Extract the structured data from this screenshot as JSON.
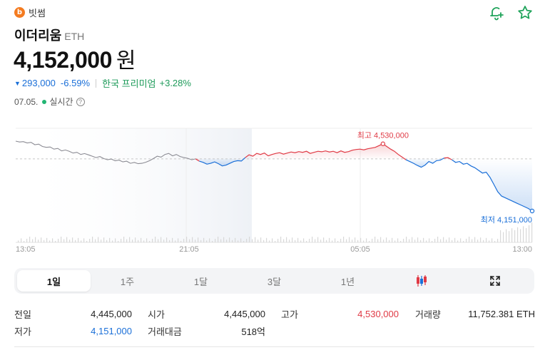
{
  "exchange": {
    "logo_letter": "b",
    "name": "빗썸"
  },
  "coin": {
    "name": "이더리움",
    "symbol": "ETH"
  },
  "price": {
    "value": "4,152,000",
    "unit": "원"
  },
  "change": {
    "amount": "293,000",
    "percent": "-6.59%",
    "direction": "down"
  },
  "premium": {
    "label": "한국 프리미엄",
    "value": "+3.28%"
  },
  "status": {
    "date": "07.05.",
    "live_label": "실시간",
    "help": "?"
  },
  "chart": {
    "high_label": "최고 4,530,000",
    "low_label": "최저 4,151,000",
    "x_ticks": [
      "13:05",
      "21:05",
      "05:05",
      "13:00"
    ]
  },
  "chart_data": {
    "type": "line",
    "title": "",
    "xlabel": "",
    "ylabel": "",
    "x_ticks": [
      "13:05",
      "21:05",
      "05:05",
      "13:00"
    ],
    "reference_price": 4445000,
    "high": 4530000,
    "low": 4151000,
    "series": [
      {
        "values": [
          4545000,
          4540000,
          4542000,
          4535000,
          4538000,
          4525000,
          4528000,
          4515000,
          4510000,
          4512000,
          4500000,
          4504000,
          4490000,
          4495000,
          4488000,
          4478000,
          4482000,
          4470000,
          4475000,
          4468000,
          4460000,
          4452000,
          4458000,
          4447000,
          4440000,
          4444000,
          4434000,
          4438000,
          4428000,
          4432000,
          4420000,
          4425000,
          4418000,
          4420000,
          4426000,
          4435000,
          4447000,
          4460000,
          4455000,
          4470000,
          4476000,
          4462000,
          4470000,
          4458000,
          4452000,
          4448000,
          4440000,
          4445000,
          4432000,
          4425000,
          4415000,
          4420000,
          4428000,
          4418000,
          4405000,
          4410000,
          4420000,
          4430000,
          4435000,
          4433000,
          4452000,
          4468000,
          4460000,
          4476000,
          4470000,
          4478000,
          4462000,
          4470000,
          4476000,
          4480000,
          4472000,
          4478000,
          4484000,
          4480000,
          4486000,
          4482000,
          4488000,
          4476000,
          4482000,
          4488000,
          4485000,
          4490000,
          4484000,
          4488000,
          4480000,
          4490000,
          4482000,
          4486000,
          4494000,
          4498000,
          4500000,
          4496000,
          4502000,
          4506000,
          4510000,
          4520000,
          4530000,
          4515000,
          4500000,
          4488000,
          4470000,
          4455000,
          4440000,
          4430000,
          4420000,
          4408000,
          4398000,
          4410000,
          4430000,
          4420000,
          4435000,
          4438000,
          4450000,
          4452000,
          4440000,
          4425000,
          4430000,
          4415000,
          4420000,
          4405000,
          4395000,
          4380000,
          4365000,
          4370000,
          4340000,
          4300000,
          4260000,
          4235000,
          4225000,
          4215000,
          4205000,
          4195000,
          4185000,
          4175000,
          4165000,
          4151000
        ]
      }
    ]
  },
  "tabs": [
    "1일",
    "1주",
    "1달",
    "3달",
    "1년"
  ],
  "stats": {
    "prev_close_label": "전일",
    "prev_close": "4,445,000",
    "open_label": "시가",
    "open": "4,445,000",
    "high_label": "고가",
    "high": "4,530,000",
    "volume_label": "거래량",
    "volume": "11,752.381 ETH",
    "low_label": "저가",
    "low": "4,151,000",
    "turnover_label": "거래대금",
    "turnover": "518억"
  },
  "colors": {
    "up": "#e03a45",
    "down": "#1a6fd8",
    "premium": "#1e9b5a",
    "past": "#8c8c94"
  }
}
